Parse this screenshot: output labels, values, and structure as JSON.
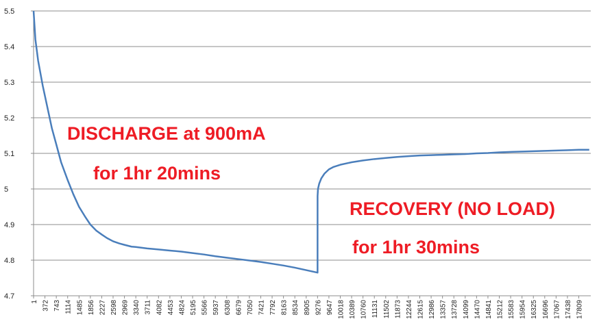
{
  "chart_data": {
    "type": "line",
    "y_ticks": [
      "5.5",
      "5.4",
      "5.3",
      "5.2",
      "5.1",
      "5",
      "4.9",
      "4.8",
      "4.7"
    ],
    "ylim": [
      4.7,
      5.5
    ],
    "xlim": [
      1,
      18200
    ],
    "x_tick_labels": [
      "1",
      "372",
      "743",
      "1114",
      "1485",
      "1856",
      "2227",
      "2598",
      "2969",
      "3340",
      "3711",
      "4082",
      "4453",
      "4824",
      "5195",
      "5566",
      "5937",
      "6308",
      "6679",
      "7050",
      "7421",
      "7792",
      "8163",
      "8534",
      "8905",
      "9276",
      "9647",
      "10018",
      "10389",
      "10760",
      "11131",
      "11502",
      "11873",
      "12244",
      "12615",
      "12986",
      "13357",
      "13728",
      "14099",
      "14470",
      "14841",
      "15212",
      "15583",
      "15954",
      "16325",
      "16696",
      "17067",
      "17438",
      "17809"
    ],
    "grid": "horizontal",
    "line_color": "#4a7ebb",
    "annotation_color": "#ee1c25",
    "annotations": [
      "DISCHARGE at 900mA",
      "for 1hr 20mins",
      "RECOVERY (NO LOAD)",
      "for 1hr 30mins"
    ],
    "series": [
      {
        "x": [
          1,
          60,
          150,
          300,
          450,
          600,
          743,
          900,
          1114,
          1300,
          1485,
          1700,
          1856,
          2050,
          2227,
          2400,
          2598,
          2800,
          2969,
          3200,
          3340,
          3711,
          4082,
          4453,
          4824,
          5195,
          5566,
          5937,
          6308,
          6679,
          7050,
          7421,
          7792,
          8163,
          8534,
          8905,
          9276,
          9277,
          9290,
          9330,
          9400,
          9500,
          9647,
          9800,
          10018,
          10389,
          10760,
          11131,
          11502,
          11873,
          12244,
          12615,
          12986,
          13357,
          13728,
          14099,
          14470,
          14841,
          15212,
          15583,
          15954,
          16325,
          16696,
          17067,
          17438,
          17809,
          18150
        ],
        "values": [
          5.5,
          5.42,
          5.36,
          5.29,
          5.23,
          5.17,
          5.125,
          5.075,
          5.025,
          4.985,
          4.95,
          4.92,
          4.9,
          4.883,
          4.872,
          4.862,
          4.853,
          4.847,
          4.843,
          4.838,
          4.837,
          4.833,
          4.83,
          4.827,
          4.824,
          4.82,
          4.816,
          4.811,
          4.807,
          4.803,
          4.799,
          4.795,
          4.79,
          4.785,
          4.779,
          4.772,
          4.765,
          4.98,
          5.0,
          5.015,
          5.03,
          5.043,
          5.055,
          5.062,
          5.068,
          5.075,
          5.08,
          5.084,
          5.087,
          5.09,
          5.092,
          5.094,
          5.095,
          5.096,
          5.097,
          5.098,
          5.1,
          5.101,
          5.103,
          5.104,
          5.105,
          5.106,
          5.107,
          5.108,
          5.109,
          5.11,
          5.11
        ]
      }
    ]
  }
}
